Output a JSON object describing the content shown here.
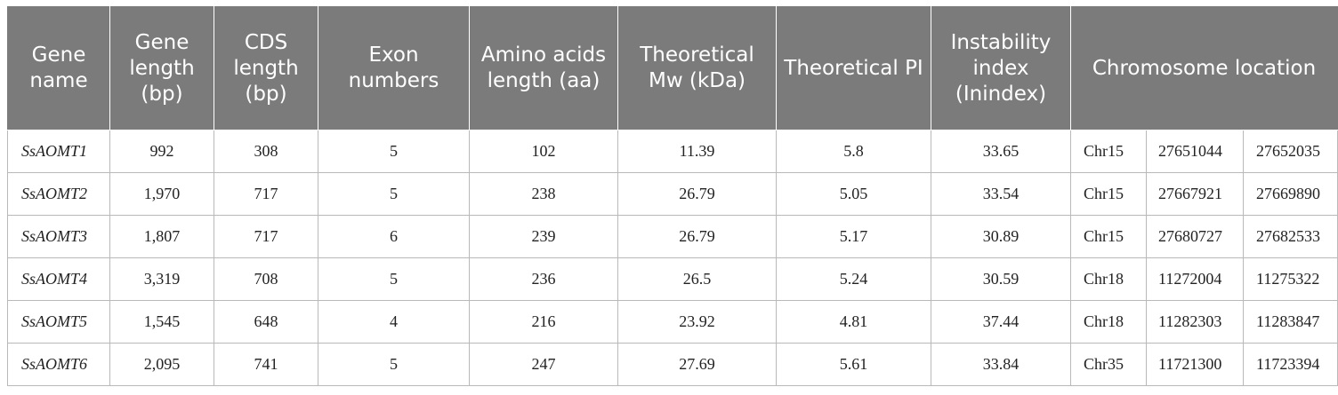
{
  "table": {
    "headers": {
      "gene_name": "Gene name",
      "gene_length": "Gene length (bp)",
      "cds_length": "CDS length (bp)",
      "exon_numbers": "Exon numbers",
      "amino_acids_length": "Amino acids length (aa)",
      "theoretical_mw": "Theoretical Mw (kDa)",
      "theoretical_pi": "Theoretical PI",
      "instability_index": "Instability index (Inindex)",
      "chromosome_location": "Chromosome location"
    },
    "rows": [
      {
        "gene": "SsAOMT1",
        "gene_length": "992",
        "cds_length": "308",
        "exons": "5",
        "aa_length": "102",
        "mw": "11.39",
        "pi": "5.8",
        "instability": "33.65",
        "chr": "Chr15",
        "start": "27651044",
        "end": "27652035"
      },
      {
        "gene": "SsAOMT2",
        "gene_length": "1,970",
        "cds_length": "717",
        "exons": "5",
        "aa_length": "238",
        "mw": "26.79",
        "pi": "5.05",
        "instability": "33.54",
        "chr": "Chr15",
        "start": "27667921",
        "end": "27669890"
      },
      {
        "gene": "SsAOMT3",
        "gene_length": "1,807",
        "cds_length": "717",
        "exons": "6",
        "aa_length": "239",
        "mw": "26.79",
        "pi": "5.17",
        "instability": "30.89",
        "chr": "Chr15",
        "start": "27680727",
        "end": "27682533"
      },
      {
        "gene": "SsAOMT4",
        "gene_length": "3,319",
        "cds_length": "708",
        "exons": "5",
        "aa_length": "236",
        "mw": "26.5",
        "pi": "5.24",
        "instability": "30.59",
        "chr": "Chr18",
        "start": "11272004",
        "end": "11275322"
      },
      {
        "gene": "SsAOMT5",
        "gene_length": "1,545",
        "cds_length": "648",
        "exons": "4",
        "aa_length": "216",
        "mw": "23.92",
        "pi": "4.81",
        "instability": "37.44",
        "chr": "Chr18",
        "start": "11282303",
        "end": "11283847"
      },
      {
        "gene": "SsAOMT6",
        "gene_length": "2,095",
        "cds_length": "741",
        "exons": "5",
        "aa_length": "247",
        "mw": "27.69",
        "pi": "5.61",
        "instability": "33.84",
        "chr": "Chr35",
        "start": "11721300",
        "end": "11723394"
      }
    ]
  }
}
